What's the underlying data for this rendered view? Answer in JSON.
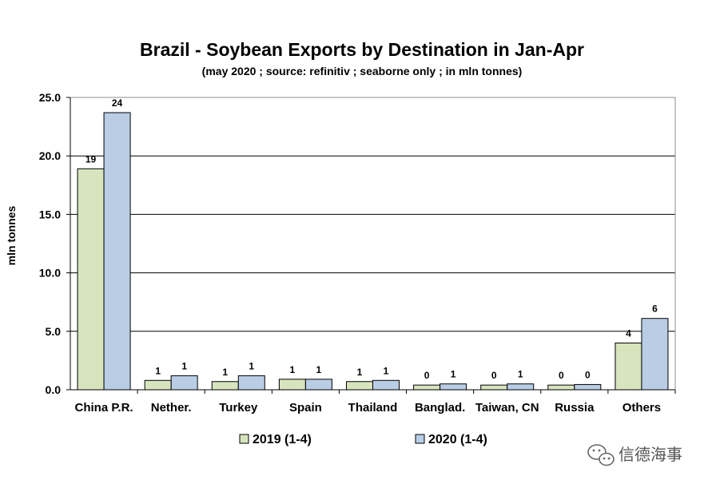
{
  "chart_data": {
    "type": "bar",
    "title": "Brazil - Soybean Exports by Destination in Jan-Apr",
    "subtitle": "(may 2020 ; source: refinitiv ; seaborne only ; in mln tonnes)",
    "ylabel": "mln tonnes",
    "xlabel": "",
    "ylim": [
      0,
      25
    ],
    "yticks": [
      0,
      5,
      10,
      15,
      20,
      25
    ],
    "ytick_labels": [
      "0.0",
      "5.0",
      "10.0",
      "15.0",
      "20.0",
      "25.0"
    ],
    "grid": true,
    "legend_position": "bottom",
    "categories": [
      "China P.R.",
      "Nether.",
      "Turkey",
      "Spain",
      "Thailand",
      "Banglad.",
      "Taiwan, CN",
      "Russia",
      "Others"
    ],
    "series": [
      {
        "name": "2019 (1-4)",
        "color": "#d7e4bd",
        "values": [
          18.9,
          0.8,
          0.7,
          0.9,
          0.7,
          0.4,
          0.4,
          0.4,
          4.0
        ],
        "labels": [
          "19",
          "1",
          "1",
          "1",
          "1",
          "0",
          "0",
          "0",
          "4"
        ]
      },
      {
        "name": "2020 (1-4)",
        "color": "#b9cde5",
        "values": [
          23.7,
          1.2,
          1.2,
          0.9,
          0.8,
          0.5,
          0.5,
          0.45,
          6.1
        ],
        "labels": [
          "24",
          "1",
          "1",
          "1",
          "1",
          "1",
          "1",
          "0",
          "6"
        ]
      }
    ]
  },
  "watermark": {
    "text": "信德海事",
    "icon": "wechat-icon"
  }
}
